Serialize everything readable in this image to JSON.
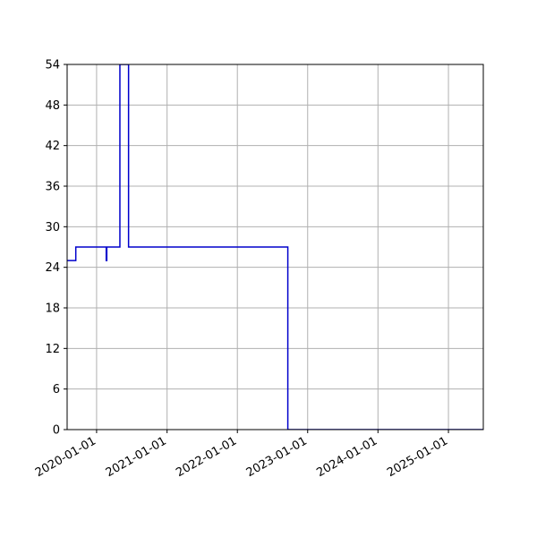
{
  "chart_data": {
    "type": "line",
    "title": "",
    "xlabel": "",
    "ylabel": "",
    "x_axis_type": "date",
    "xlim": [
      "2019-08-01",
      "2025-07-01"
    ],
    "ylim": [
      0,
      54
    ],
    "grid": true,
    "step": true,
    "x_ticks": [
      "2020-01-01",
      "2021-01-01",
      "2022-01-01",
      "2023-01-01",
      "2024-01-01",
      "2025-01-01"
    ],
    "y_ticks": [
      0,
      6,
      12,
      18,
      24,
      30,
      36,
      42,
      48,
      54
    ],
    "series": [
      {
        "name": "",
        "color": "#0000cc",
        "x": [
          "2019-08-01",
          "2019-09-15",
          "2019-09-15",
          "2020-02-20",
          "2020-02-20",
          "2020-02-23",
          "2020-02-23",
          "2020-05-01",
          "2020-05-01",
          "2020-06-15",
          "2020-06-15",
          "2022-09-20",
          "2022-09-20",
          "2025-07-01"
        ],
        "y": [
          25,
          25,
          27,
          27,
          25,
          25,
          27,
          27,
          54,
          54,
          27,
          27,
          0,
          0
        ]
      }
    ]
  }
}
